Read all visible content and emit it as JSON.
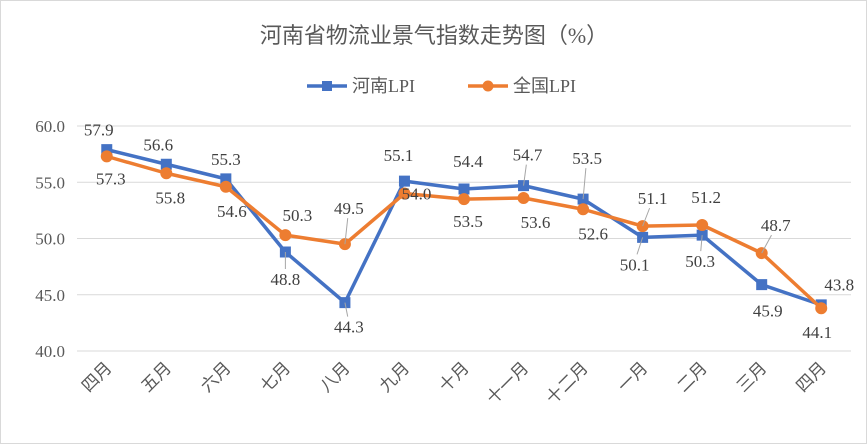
{
  "chart_data": {
    "type": "line",
    "title": "河南省物流业景气指数走势图（%）",
    "xlabel": "",
    "ylabel": "",
    "categories": [
      "四月",
      "五月",
      "六月",
      "七月",
      "八月",
      "九月",
      "十月",
      "十一月",
      "十二月",
      "一月",
      "二月",
      "三月",
      "四月"
    ],
    "ylim": [
      40.0,
      60.0
    ],
    "yticks": [
      "40.0",
      "45.0",
      "50.0",
      "55.0",
      "60.0"
    ],
    "grid": "horizontal",
    "legend_position": "top-center",
    "series": [
      {
        "name": "河南LPI",
        "color": "#4472C4",
        "marker": "square",
        "values": [
          57.9,
          56.6,
          55.3,
          48.8,
          44.3,
          55.1,
          54.4,
          54.7,
          53.5,
          50.1,
          50.3,
          45.9,
          44.1
        ],
        "labels": [
          "57.9",
          "56.6",
          "55.3",
          "48.8",
          "44.3",
          "55.1",
          "54.4",
          "54.7",
          "53.5",
          "50.1",
          "50.3",
          "45.9",
          "44.1"
        ]
      },
      {
        "name": "全国LPI",
        "color": "#ED7D31",
        "marker": "circle",
        "values": [
          57.3,
          55.8,
          54.6,
          50.3,
          49.5,
          54.0,
          53.5,
          53.6,
          52.6,
          51.1,
          51.2,
          48.7,
          43.8
        ],
        "labels": [
          "57.3",
          "55.8",
          "54.6",
          "50.3",
          "49.5",
          "54.0",
          "53.5",
          "53.6",
          "52.6",
          "51.1",
          "51.2",
          "48.7",
          "43.8"
        ]
      }
    ]
  }
}
